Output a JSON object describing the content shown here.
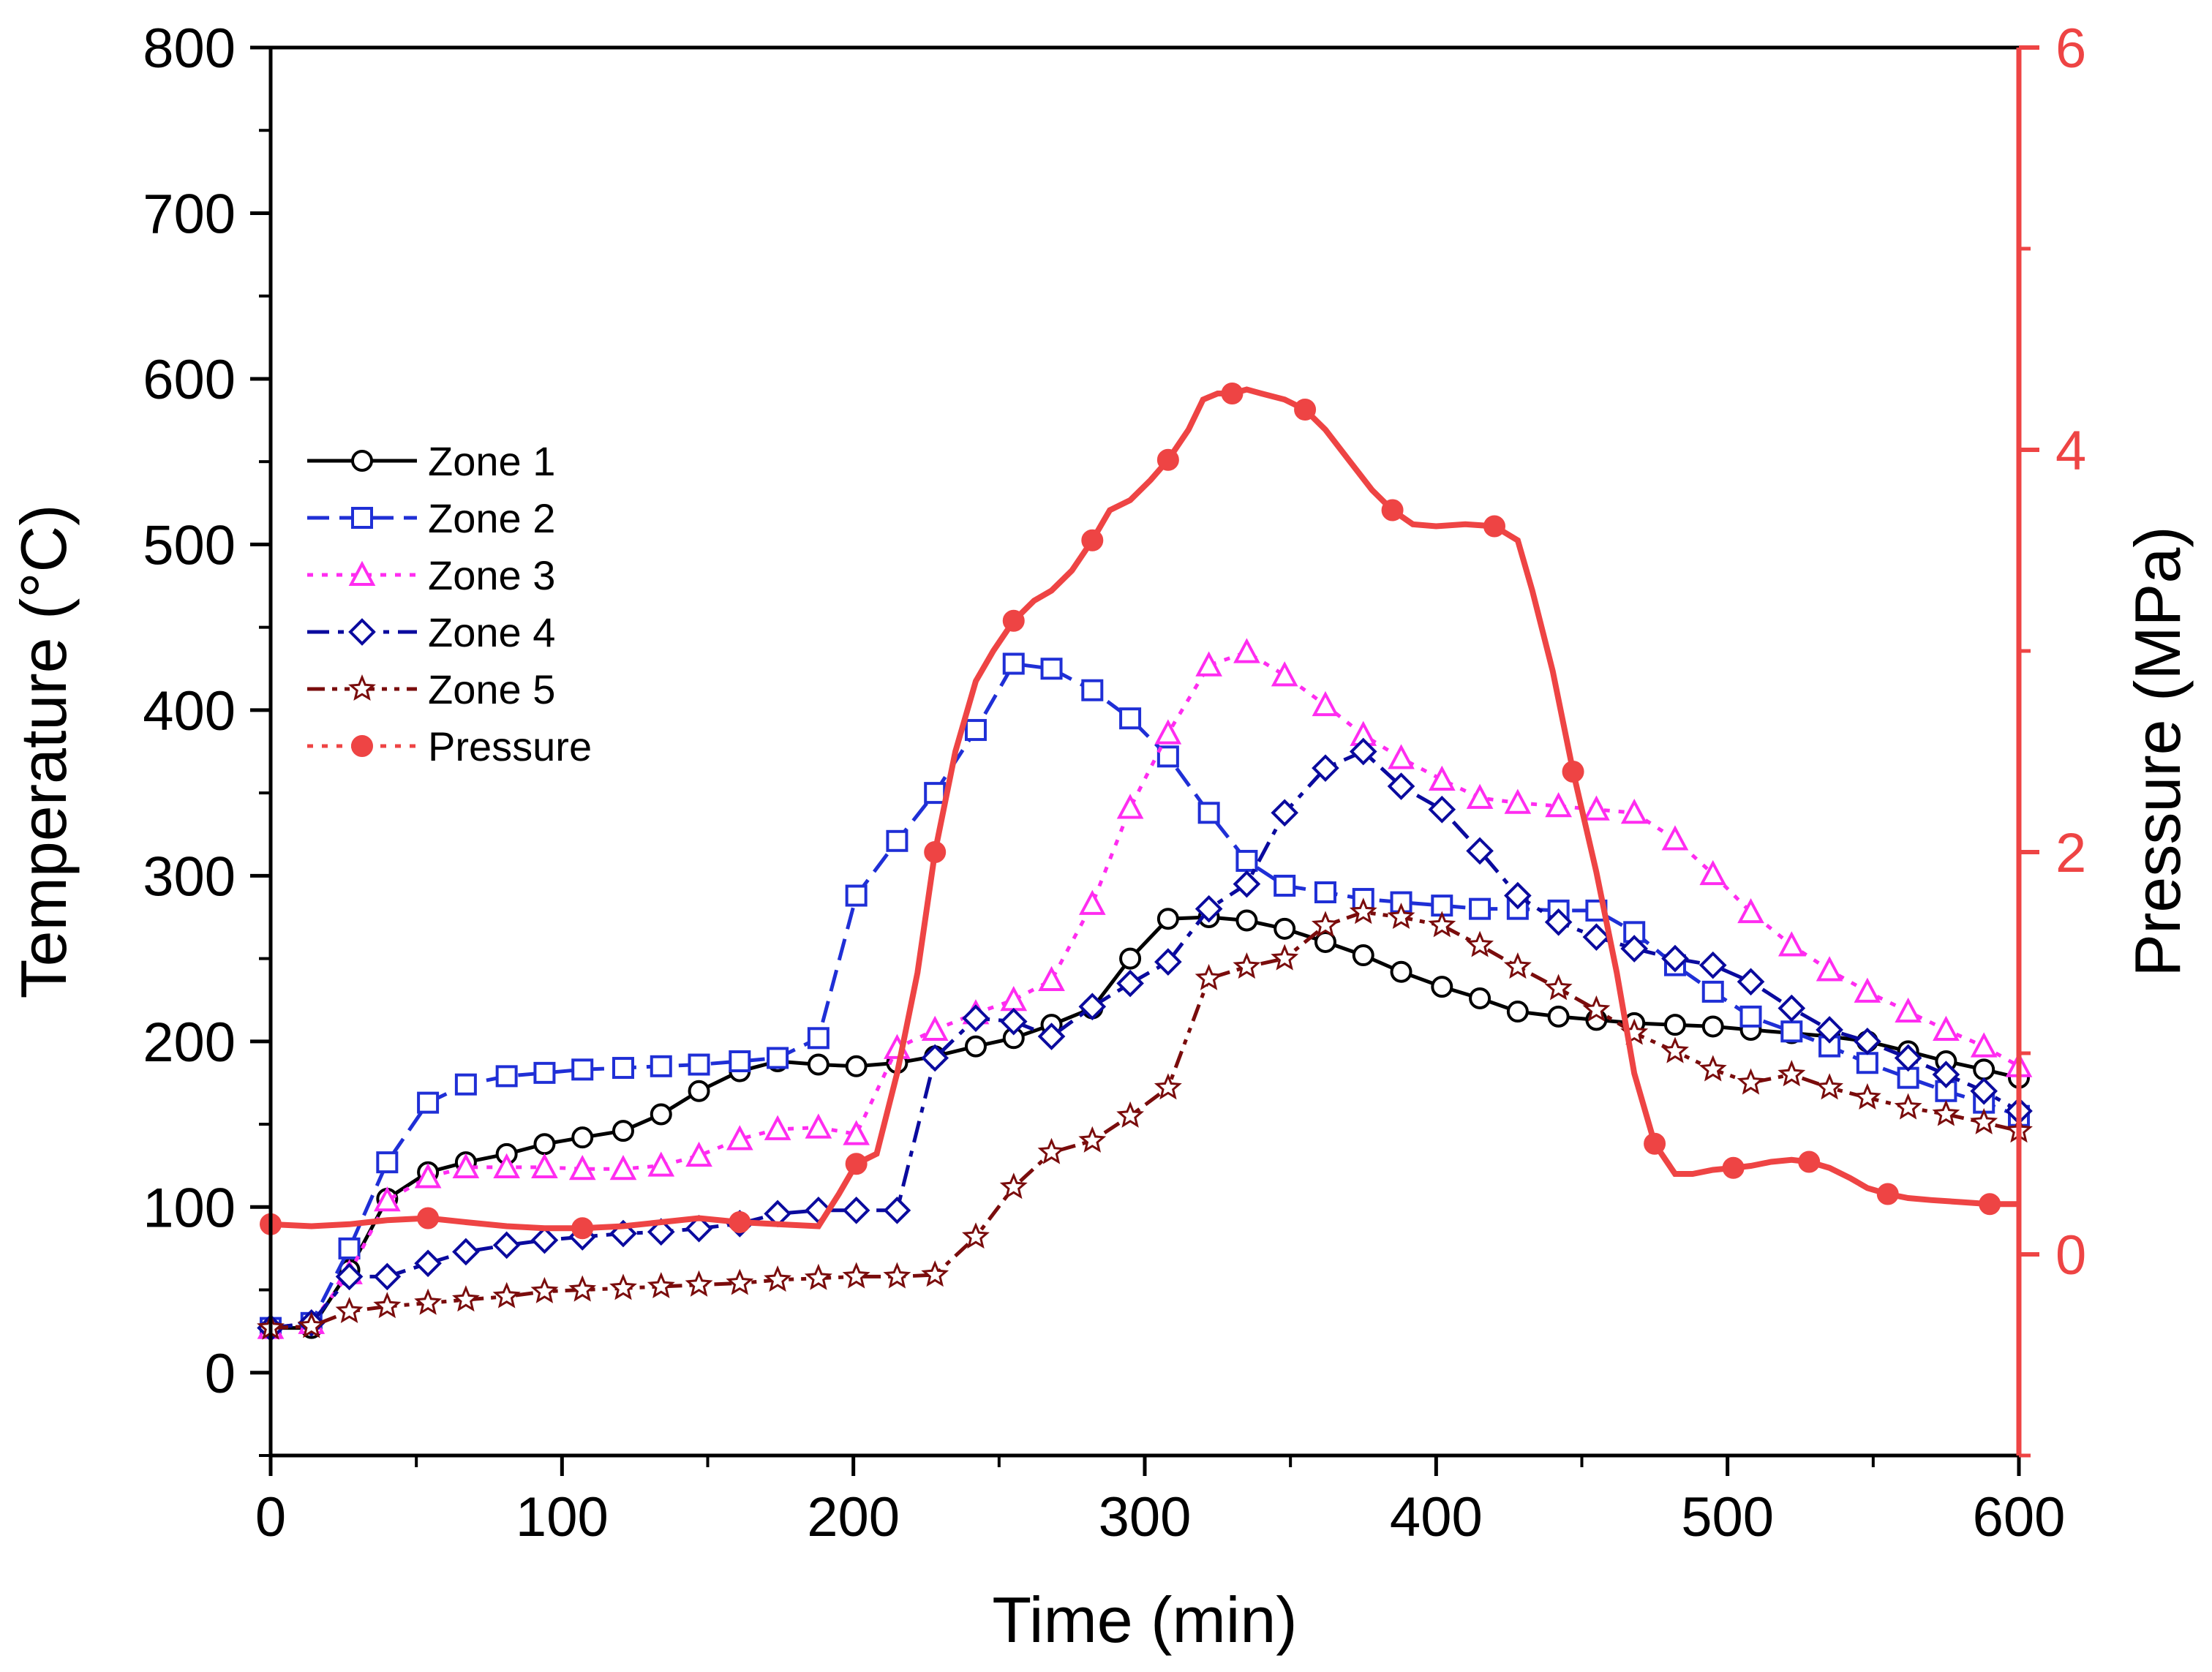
{
  "chart_data": {
    "type": "line",
    "title": "",
    "xlabel": "Time (min)",
    "ylabel": "Temperature (°C)",
    "y2label": "Pressure (MPa)",
    "xlim": [
      0,
      600
    ],
    "ylim": [
      -50,
      800
    ],
    "y2lim": [
      -1,
      6
    ],
    "x_ticks": [
      0,
      100,
      200,
      300,
      400,
      500,
      600
    ],
    "y_ticks": [
      0,
      100,
      200,
      300,
      400,
      500,
      600,
      700,
      800
    ],
    "y2_ticks": [
      0,
      2,
      4,
      6
    ],
    "legend_position": "left-middle",
    "grid": false,
    "colors": {
      "zone1": "#000000",
      "zone2": "#1f2fd6",
      "zone3": "#ff2cf0",
      "zone4": "#0a0a9e",
      "zone5": "#7a0c0c",
      "pressure": "#ee4444",
      "right_axis": "#ee4444"
    },
    "series": [
      {
        "name": "Zone 1",
        "key": "zone1",
        "dash": "solid",
        "marker": "circle",
        "x": [
          0,
          14,
          27,
          40,
          54,
          67,
          81,
          94,
          107,
          121,
          134,
          147,
          161,
          174,
          188,
          201,
          215,
          228,
          242,
          255,
          268,
          282,
          295,
          308,
          322,
          335,
          348,
          362,
          375,
          388,
          402,
          415,
          428,
          442,
          455,
          468,
          482,
          495,
          508,
          522,
          535,
          548,
          562,
          575,
          588,
          600
        ],
        "y": [
          27,
          27,
          62,
          105,
          121,
          127,
          132,
          138,
          142,
          146,
          156,
          170,
          182,
          188,
          186,
          185,
          187,
          191,
          197,
          202,
          210,
          220,
          250,
          274,
          275,
          273,
          268,
          260,
          252,
          242,
          233,
          226,
          218,
          215,
          213,
          211,
          210,
          209,
          207,
          205,
          203,
          200,
          194,
          188,
          183,
          178
        ]
      },
      {
        "name": "Zone 2",
        "key": "zone2",
        "dash": "dashed",
        "marker": "square",
        "x": [
          0,
          14,
          27,
          40,
          54,
          67,
          81,
          94,
          107,
          121,
          134,
          147,
          161,
          174,
          188,
          201,
          215,
          228,
          242,
          255,
          268,
          282,
          295,
          308,
          322,
          335,
          348,
          362,
          375,
          388,
          402,
          415,
          428,
          442,
          455,
          468,
          482,
          495,
          508,
          522,
          535,
          548,
          562,
          575,
          588,
          600
        ],
        "y": [
          27,
          30,
          75,
          127,
          163,
          174,
          179,
          181,
          183,
          184,
          185,
          186,
          188,
          190,
          202,
          288,
          321,
          350,
          388,
          428,
          425,
          412,
          395,
          372,
          338,
          309,
          294,
          290,
          286,
          284,
          282,
          280,
          280,
          279,
          279,
          266,
          246,
          230,
          215,
          206,
          197,
          187,
          178,
          170,
          163,
          155
        ]
      },
      {
        "name": "Zone 3",
        "key": "zone3",
        "dash": "dotted",
        "marker": "triangle",
        "x": [
          0,
          14,
          27,
          40,
          54,
          67,
          81,
          94,
          107,
          121,
          134,
          147,
          161,
          174,
          188,
          201,
          215,
          228,
          242,
          255,
          268,
          282,
          295,
          308,
          322,
          335,
          348,
          362,
          375,
          388,
          402,
          415,
          428,
          442,
          455,
          468,
          482,
          495,
          508,
          522,
          535,
          548,
          562,
          575,
          588,
          600
        ],
        "y": [
          27,
          30,
          60,
          104,
          118,
          124,
          124,
          124,
          123,
          123,
          125,
          131,
          141,
          147,
          148,
          144,
          196,
          207,
          217,
          225,
          237,
          283,
          341,
          386,
          427,
          435,
          421,
          403,
          385,
          371,
          358,
          347,
          344,
          342,
          340,
          338,
          322,
          301,
          278,
          258,
          243,
          230,
          218,
          207,
          197,
          185
        ]
      },
      {
        "name": "Zone 4",
        "key": "zone4",
        "dash": "dashdot",
        "marker": "diamond",
        "x": [
          0,
          14,
          27,
          40,
          54,
          67,
          81,
          94,
          107,
          121,
          134,
          147,
          161,
          174,
          188,
          201,
          215,
          228,
          242,
          255,
          268,
          282,
          295,
          308,
          322,
          335,
          348,
          362,
          375,
          388,
          402,
          415,
          428,
          442,
          455,
          468,
          482,
          495,
          508,
          522,
          535,
          548,
          562,
          575,
          588,
          600
        ],
        "y": [
          27,
          30,
          58,
          58,
          66,
          73,
          77,
          80,
          82,
          84,
          85,
          87,
          90,
          96,
          98,
          98,
          98,
          190,
          214,
          212,
          203,
          221,
          235,
          248,
          280,
          295,
          338,
          365,
          375,
          354,
          340,
          315,
          288,
          272,
          263,
          256,
          250,
          246,
          236,
          220,
          207,
          200,
          190,
          180,
          170,
          158
        ]
      },
      {
        "name": "Zone 5",
        "key": "zone5",
        "dash": "dashdotdot",
        "marker": "star",
        "x": [
          0,
          14,
          27,
          40,
          54,
          67,
          81,
          94,
          107,
          121,
          134,
          147,
          161,
          174,
          188,
          201,
          215,
          228,
          242,
          255,
          268,
          282,
          295,
          308,
          322,
          335,
          348,
          362,
          375,
          388,
          402,
          415,
          428,
          442,
          455,
          468,
          482,
          495,
          508,
          522,
          535,
          548,
          562,
          575,
          588,
          600
        ],
        "y": [
          27,
          28,
          37,
          40,
          42,
          44,
          46,
          49,
          50,
          51,
          52,
          53,
          54,
          56,
          57,
          58,
          58,
          59,
          82,
          112,
          133,
          140,
          155,
          172,
          238,
          245,
          250,
          270,
          278,
          275,
          270,
          258,
          245,
          232,
          219,
          205,
          194,
          183,
          175,
          180,
          172,
          166,
          160,
          156,
          151,
          146
        ]
      }
    ],
    "pressure_series": {
      "name": "Pressure",
      "key": "pressure",
      "dash": "dotted",
      "marker": "filled-circle",
      "axis": "right",
      "x": [
        0,
        14,
        27,
        40,
        54,
        67,
        81,
        94,
        107,
        121,
        134,
        147,
        161,
        174,
        188,
        195,
        201,
        208,
        215,
        222,
        228,
        235,
        242,
        248,
        255,
        262,
        268,
        275,
        282,
        288,
        295,
        302,
        308,
        315,
        320,
        325,
        330,
        335,
        340,
        348,
        355,
        362,
        370,
        378,
        385,
        392,
        400,
        410,
        420,
        428,
        433,
        440,
        447,
        455,
        462,
        468,
        475,
        482,
        488,
        495,
        502,
        508,
        515,
        522,
        528,
        535,
        542,
        548,
        555,
        562,
        570,
        580,
        590,
        600
      ],
      "y": [
        0.15,
        0.14,
        0.15,
        0.17,
        0.18,
        0.16,
        0.14,
        0.13,
        0.13,
        0.14,
        0.16,
        0.18,
        0.16,
        0.15,
        0.14,
        0.3,
        0.45,
        0.5,
        0.9,
        1.4,
        2.0,
        2.5,
        2.85,
        3.0,
        3.15,
        3.25,
        3.3,
        3.4,
        3.55,
        3.7,
        3.75,
        3.85,
        3.95,
        4.1,
        4.25,
        4.28,
        4.28,
        4.3,
        4.28,
        4.25,
        4.2,
        4.1,
        3.95,
        3.8,
        3.7,
        3.63,
        3.62,
        3.63,
        3.62,
        3.55,
        3.3,
        2.9,
        2.4,
        1.9,
        1.4,
        0.9,
        0.55,
        0.4,
        0.4,
        0.42,
        0.43,
        0.44,
        0.46,
        0.47,
        0.46,
        0.43,
        0.38,
        0.33,
        0.3,
        0.28,
        0.27,
        0.26,
        0.25,
        0.25
      ]
    },
    "legend": [
      "Zone 1",
      "Zone 2",
      "Zone 3",
      "Zone 4",
      "Zone 5",
      "Pressure"
    ]
  }
}
